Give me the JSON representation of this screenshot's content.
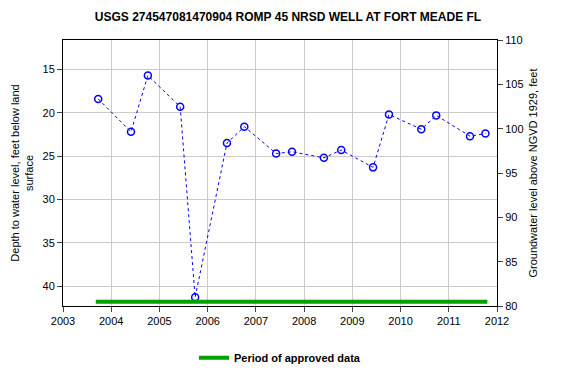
{
  "chart_data": {
    "type": "scatter",
    "title": "USGS 274547081470904 ROMP 45 NRSD WELL AT FORT MEADE FL",
    "y_label": "Depth to water level, feet below land\nsurface",
    "y2_label": "Groundwater level above NGVD 1929, feet",
    "series": [
      {
        "type": "line",
        "color": "#0000ff",
        "marker": "circle-open",
        "line_style": "dotted",
        "x": [
          2003.73,
          2004.41,
          2004.76,
          2005.43,
          2005.74,
          2006.4,
          2006.76,
          2007.42,
          2007.75,
          2008.41,
          2008.77,
          2009.43,
          2009.76,
          2010.43,
          2010.74,
          2011.44,
          2011.76
        ],
        "values": [
          18.4,
          22.2,
          15.7,
          19.3,
          41.3,
          23.5,
          21.6,
          24.7,
          24.5,
          25.2,
          24.3,
          26.3,
          20.2,
          21.9,
          20.3,
          22.7,
          22.4
        ]
      },
      {
        "name": "Period of approved data",
        "type": "line",
        "color": "#00a000",
        "line_style": "solid",
        "x": [
          2003.68,
          2011.8
        ],
        "values": [
          41.8,
          41.8
        ]
      }
    ],
    "xlim": [
      2003,
      2012
    ],
    "xticks": [
      2003,
      2004,
      2005,
      2006,
      2007,
      2008,
      2009,
      2010,
      2011,
      2012
    ],
    "ylim": [
      42.3,
      11.6
    ],
    "yticks": [
      15,
      20,
      25,
      30,
      35,
      40
    ],
    "y2lim": [
      80,
      110
    ],
    "y2ticks": [
      80,
      85,
      90,
      95,
      100,
      105,
      110
    ],
    "grid": true,
    "legend": "bottom"
  }
}
